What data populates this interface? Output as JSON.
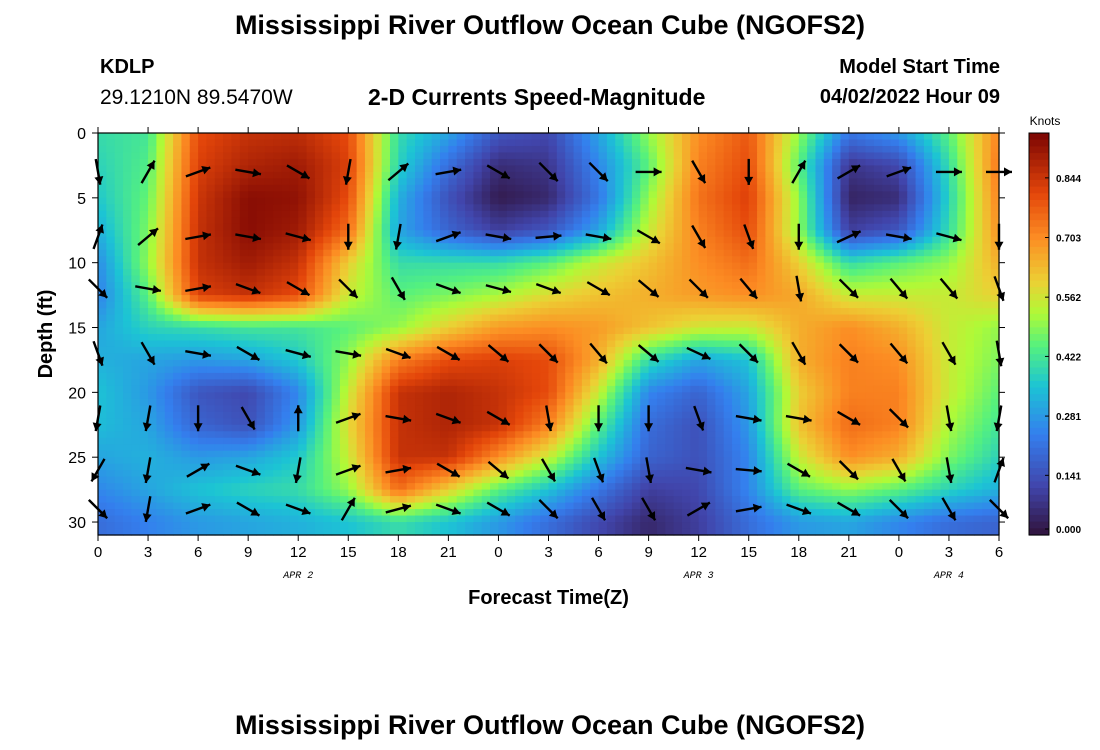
{
  "header": {
    "title": "Mississippi River Outflow Ocean Cube (NGOFS2)",
    "station_id": "KDLP",
    "coordinates": "29.1210N  89.5470W",
    "subtitle": "2-D Currents Speed-Magnitude",
    "model_start_label": "Model Start Time",
    "model_start_value": "04/02/2022 Hour 09"
  },
  "footer": {
    "title": "Mississippi River Outflow Ocean Cube (NGOFS2)"
  },
  "chart_data": {
    "type": "heatmap",
    "title": "2-D Currents Speed-Magnitude",
    "xlabel": "Forecast Time(Z)",
    "ylabel": "Depth (ft)",
    "x_range_hours": [
      0,
      54
    ],
    "y_range": [
      0,
      31
    ],
    "y_inverted": true,
    "x_ticks": [
      "0",
      "3",
      "6",
      "9",
      "12",
      "15",
      "18",
      "21",
      "0",
      "3",
      "6",
      "9",
      "12",
      "15",
      "18",
      "21",
      "0",
      "3",
      "6"
    ],
    "y_ticks": [
      0,
      5,
      10,
      15,
      20,
      25,
      30
    ],
    "date_labels": [
      {
        "text": "APR 2",
        "at_hour": 12
      },
      {
        "text": "APR 3",
        "at_hour": 36
      },
      {
        "text": "APR 4",
        "at_hour": 51
      }
    ],
    "colorbar": {
      "label": "Knots",
      "ticks": [
        "0.000",
        "0.141",
        "0.281",
        "0.422",
        "0.562",
        "0.703",
        "0.844"
      ],
      "range": [
        0,
        0.95
      ],
      "colormap": "turbo"
    },
    "grid": false,
    "speed_depths": [
      0,
      2.5,
      5,
      7.5,
      10,
      12.5,
      15,
      17.5,
      20,
      22.5,
      25,
      27.5,
      30
    ],
    "speed_times": [
      0,
      3,
      6,
      9,
      12,
      15,
      18,
      21,
      24,
      27,
      30,
      33,
      36,
      39,
      42,
      45,
      48,
      51,
      54
    ],
    "speed": [
      [
        0.4,
        0.42,
        0.8,
        0.85,
        0.86,
        0.8,
        0.4,
        0.3,
        0.15,
        0.12,
        0.3,
        0.5,
        0.7,
        0.78,
        0.5,
        0.22,
        0.28,
        0.45,
        0.72
      ],
      [
        0.38,
        0.44,
        0.82,
        0.88,
        0.9,
        0.82,
        0.38,
        0.2,
        0.06,
        0.08,
        0.25,
        0.45,
        0.72,
        0.8,
        0.45,
        0.08,
        0.12,
        0.4,
        0.74
      ],
      [
        0.36,
        0.46,
        0.84,
        0.93,
        0.92,
        0.8,
        0.32,
        0.14,
        0.02,
        0.05,
        0.22,
        0.5,
        0.74,
        0.82,
        0.5,
        0.04,
        0.06,
        0.38,
        0.72
      ],
      [
        0.32,
        0.48,
        0.85,
        0.93,
        0.9,
        0.75,
        0.3,
        0.18,
        0.1,
        0.15,
        0.3,
        0.55,
        0.72,
        0.8,
        0.5,
        0.1,
        0.15,
        0.4,
        0.7
      ],
      [
        0.26,
        0.5,
        0.85,
        0.9,
        0.85,
        0.6,
        0.4,
        0.4,
        0.4,
        0.45,
        0.55,
        0.62,
        0.7,
        0.75,
        0.6,
        0.4,
        0.45,
        0.5,
        0.65
      ],
      [
        0.24,
        0.45,
        0.82,
        0.85,
        0.8,
        0.55,
        0.45,
        0.48,
        0.52,
        0.58,
        0.62,
        0.65,
        0.68,
        0.7,
        0.66,
        0.55,
        0.55,
        0.55,
        0.6
      ],
      [
        0.3,
        0.38,
        0.4,
        0.42,
        0.42,
        0.45,
        0.5,
        0.6,
        0.68,
        0.7,
        0.68,
        0.62,
        0.56,
        0.55,
        0.65,
        0.7,
        0.65,
        0.55,
        0.5
      ],
      [
        0.32,
        0.3,
        0.28,
        0.3,
        0.36,
        0.5,
        0.72,
        0.8,
        0.82,
        0.8,
        0.65,
        0.4,
        0.3,
        0.35,
        0.65,
        0.72,
        0.7,
        0.55,
        0.48
      ],
      [
        0.35,
        0.28,
        0.15,
        0.12,
        0.25,
        0.55,
        0.85,
        0.88,
        0.85,
        0.8,
        0.55,
        0.25,
        0.18,
        0.3,
        0.6,
        0.72,
        0.72,
        0.55,
        0.45
      ],
      [
        0.34,
        0.3,
        0.18,
        0.14,
        0.28,
        0.58,
        0.85,
        0.88,
        0.85,
        0.72,
        0.45,
        0.2,
        0.14,
        0.28,
        0.62,
        0.75,
        0.72,
        0.52,
        0.42
      ],
      [
        0.3,
        0.32,
        0.28,
        0.3,
        0.36,
        0.55,
        0.85,
        0.85,
        0.7,
        0.55,
        0.35,
        0.18,
        0.14,
        0.25,
        0.55,
        0.7,
        0.65,
        0.48,
        0.38
      ],
      [
        0.25,
        0.3,
        0.35,
        0.38,
        0.4,
        0.5,
        0.75,
        0.6,
        0.45,
        0.35,
        0.22,
        0.1,
        0.12,
        0.25,
        0.45,
        0.5,
        0.45,
        0.38,
        0.32
      ],
      [
        0.2,
        0.24,
        0.28,
        0.3,
        0.32,
        0.35,
        0.4,
        0.35,
        0.28,
        0.2,
        0.12,
        0.05,
        0.1,
        0.2,
        0.28,
        0.3,
        0.25,
        0.2,
        0.18
      ]
    ],
    "vector_times": [
      0,
      3,
      6,
      9,
      12,
      15,
      18,
      21,
      24,
      27,
      30,
      33,
      36,
      39,
      42,
      45,
      48,
      51,
      54
    ],
    "vector_depths": [
      3,
      8,
      12,
      17,
      22,
      26,
      29
    ],
    "vector_angles_deg": [
      [
        80,
        -60,
        -20,
        10,
        30,
        100,
        -40,
        -10,
        30,
        45,
        45,
        0,
        60,
        90,
        -60,
        -30,
        -20,
        0,
        0
      ],
      [
        -70,
        -40,
        -10,
        10,
        15,
        90,
        100,
        -20,
        10,
        -5,
        10,
        30,
        60,
        70,
        90,
        -25,
        10,
        15,
        90
      ],
      [
        45,
        10,
        -10,
        20,
        30,
        45,
        60,
        20,
        15,
        20,
        30,
        40,
        45,
        50,
        80,
        45,
        50,
        50,
        70
      ],
      [
        70,
        60,
        10,
        30,
        15,
        10,
        20,
        30,
        40,
        45,
        50,
        40,
        25,
        45,
        60,
        45,
        50,
        60,
        80
      ],
      [
        100,
        100,
        90,
        60,
        -90,
        -20,
        10,
        20,
        30,
        80,
        90,
        90,
        70,
        10,
        10,
        30,
        45,
        80,
        100
      ],
      [
        120,
        100,
        -30,
        20,
        100,
        -20,
        -10,
        30,
        40,
        60,
        70,
        80,
        10,
        5,
        30,
        45,
        60,
        80,
        -70
      ],
      [
        45,
        100,
        -20,
        30,
        20,
        -60,
        -15,
        20,
        30,
        45,
        60,
        60,
        -30,
        -10,
        20,
        30,
        45,
        60,
        45
      ]
    ]
  }
}
